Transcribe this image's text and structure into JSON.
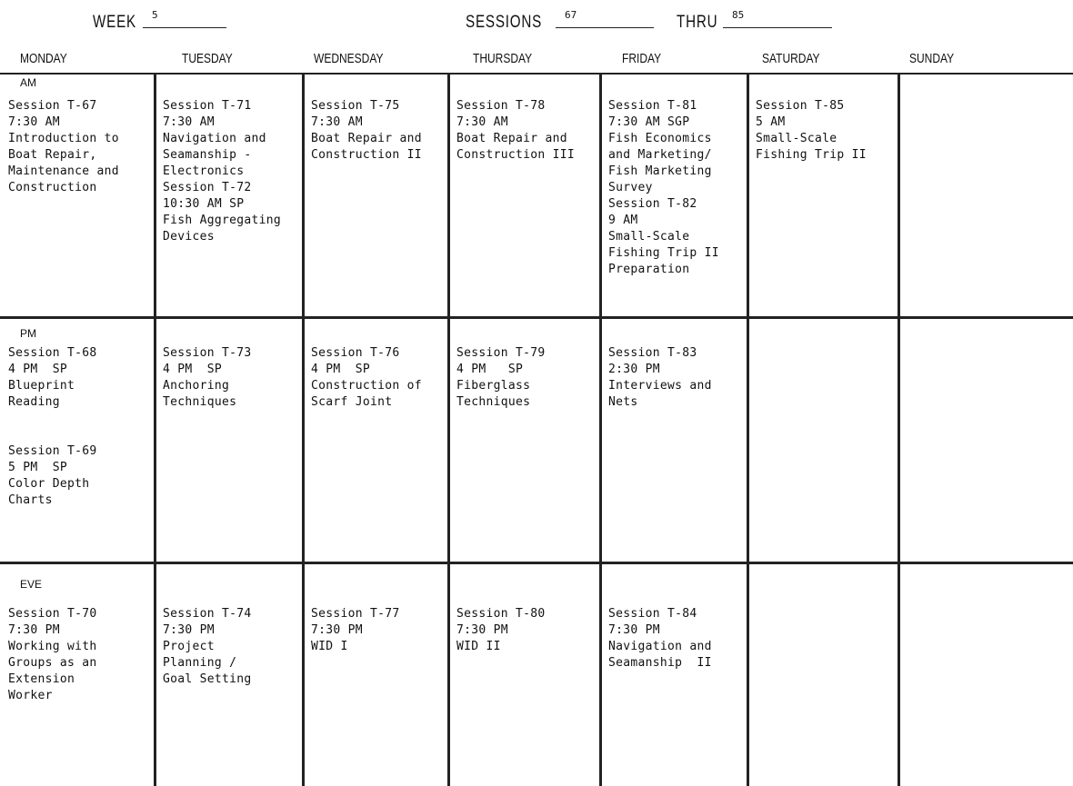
{
  "header": {
    "week_label": "WEEK",
    "week": "5",
    "sessions_label": "SESSIONS",
    "sessions_from": "67",
    "thru_label": "THRU",
    "sessions_to": "85"
  },
  "days": [
    "MONDAY",
    "TUESDAY",
    "WEDNESDAY",
    "THURSDAY",
    "FRIDAY",
    "SATURDAY",
    "SUNDAY"
  ],
  "periods": [
    "AM",
    "PM",
    "EVE"
  ],
  "schedule": {
    "am": [
      [
        "Session T-67",
        "7:30 AM",
        "Introduction to",
        "Boat Repair,",
        "Maintenance and",
        "Construction"
      ],
      [
        "Session T-71",
        "7:30 AM",
        "Navigation and",
        "Seamanship -",
        "Electronics",
        "Session T-72",
        "10:30 AM SP",
        "Fish Aggregating",
        "Devices"
      ],
      [
        "Session T-75",
        "7:30 AM",
        "Boat Repair and",
        "Construction II"
      ],
      [
        "Session T-78",
        "7:30 AM",
        "Boat Repair and",
        "Construction III"
      ],
      [
        "Session T-81",
        "7:30 AM SGP",
        "Fish Economics",
        "and Marketing/",
        "Fish Marketing",
        "Survey",
        "Session T-82",
        "9 AM",
        "Small-Scale",
        "Fishing Trip II",
        "Preparation"
      ],
      [
        "Session T-85",
        "5 AM",
        "Small-Scale",
        "Fishing Trip II"
      ],
      []
    ],
    "pm": [
      [
        "Session T-68",
        "4 PM  SP",
        "Blueprint",
        "Reading",
        "",
        "",
        "Session T-69",
        "5 PM  SP",
        "Color Depth",
        "Charts"
      ],
      [
        "Session T-73",
        "4 PM  SP",
        "Anchoring",
        "Techniques"
      ],
      [
        "Session T-76",
        "4 PM  SP",
        "Construction of",
        "Scarf Joint"
      ],
      [
        "Session T-79",
        "4 PM   SP",
        "Fiberglass",
        "Techniques"
      ],
      [
        "Session T-83",
        "2:30 PM",
        "Interviews and",
        "Nets"
      ],
      [],
      []
    ],
    "eve": [
      [
        "Session T-70",
        "7:30 PM",
        "Working with",
        "Groups as an",
        "Extension",
        "Worker"
      ],
      [
        "Session T-74",
        "7:30 PM",
        "Project",
        "Planning /",
        "Goal Setting"
      ],
      [
        "Session T-77",
        "7:30 PM",
        "WID I"
      ],
      [
        "Session T-80",
        "7:30 PM",
        "WID II"
      ],
      [
        "Session T-84",
        "7:30 PM",
        "Navigation and",
        "Seamanship  II"
      ],
      [],
      []
    ]
  }
}
